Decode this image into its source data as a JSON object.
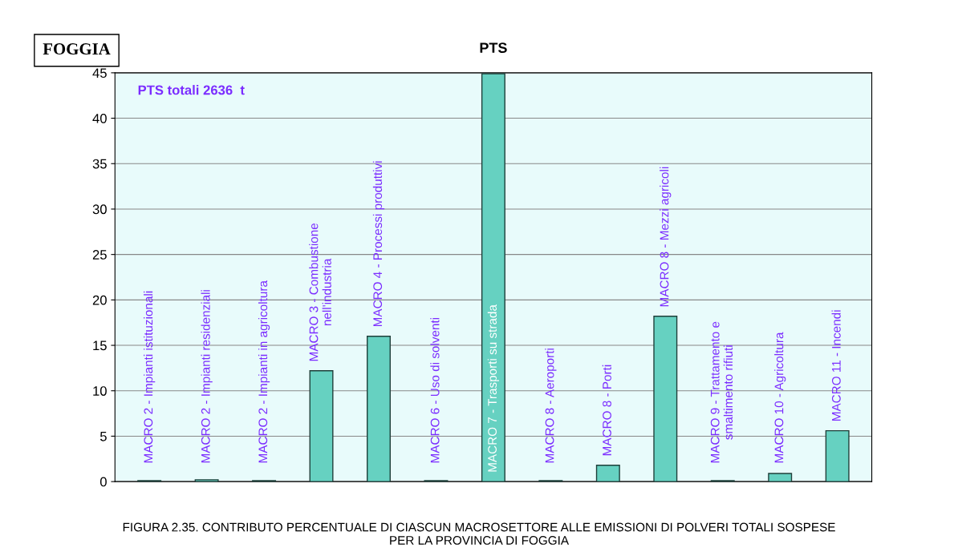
{
  "chart_data": {
    "type": "bar",
    "title": "PTS",
    "categories": [
      "MACRO 2 - Impianti istituzionali",
      "MACRO 2 - Impianti residenziali",
      "MACRO 2 - Impianti in agricoltura",
      "MACRO 3 - Combustione\nnell'industria",
      "MACRO 4 - Processi produttivi",
      "MACRO 6 - Uso di solventi",
      "MACRO 7 - Trasporti su strada",
      "MACRO 8 - Aeroporti",
      "MACRO 8 - Porti",
      "MACRO 8 - Mezzi agricoli",
      "MACRO 9 - Trattamento e\nsmaltimento rifiuti",
      "MACRO 10 - Agricoltura",
      "MACRO 11 - Incendi"
    ],
    "values": [
      0.1,
      0.2,
      0.1,
      12.2,
      16,
      0.1,
      44.9,
      0.1,
      1.8,
      18.2,
      0.1,
      0.9,
      5.6
    ],
    "color": "#66d1c1",
    "ylim": [
      0,
      45
    ],
    "yticks": [
      0,
      5,
      10,
      15,
      20,
      25,
      30,
      35,
      40,
      45
    ],
    "grid": "y",
    "annotations": [
      "FOGGIA",
      "PTS totali 2636  t",
      "FIGURA 2.35. CONTRIBUTO PERCENTUALE DI CIASCUN MACROSETTORE ALLE EMISSIONI DI POLVERI TOTALI SOSPESE\nPER LA PROVINCIA DI FOGGIA"
    ]
  }
}
